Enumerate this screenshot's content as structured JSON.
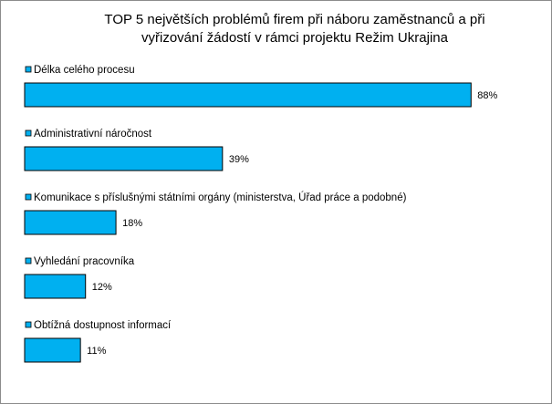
{
  "chart_data": {
    "type": "bar",
    "orientation": "horizontal",
    "title_lines": [
      "TOP 5 největších problémů firem při náboru zaměstnanců a při",
      "vyřizování žádostí v rámci projektu Režim Ukrajina"
    ],
    "categories": [
      "Délka celého procesu",
      "Administrativní náročnost",
      "Komunikace s příslušnými státními orgány (ministerstva, Úřad práce a podobné)",
      "Vyhledání pracovníka",
      "Obtížná dostupnost informací"
    ],
    "values": [
      88,
      39,
      18,
      12,
      11
    ],
    "value_labels": [
      "88%",
      "39%",
      "18%",
      "12%",
      "11%"
    ],
    "unit": "%",
    "xlim": [
      0,
      100
    ],
    "grid": false,
    "bar_color": "#00b0f0",
    "bar_edge_color": "#000000",
    "legend_marker_color": "#00b0f0"
  }
}
